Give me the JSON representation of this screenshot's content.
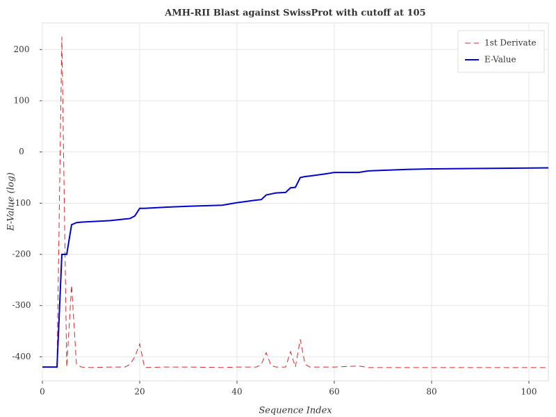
{
  "chart_data": {
    "type": "line",
    "title": "AMH-RII Blast against SwissProt with cutoff at 105",
    "x_label": "Sequence Index",
    "y_label": "E-Value (log)",
    "x": [
      0,
      3,
      4,
      5,
      6,
      7,
      8,
      10,
      14,
      17,
      18,
      19,
      20,
      21,
      25,
      30,
      37,
      40,
      44,
      45,
      46,
      47,
      48,
      50,
      51,
      52,
      53,
      54,
      55,
      58,
      60,
      65,
      67,
      75,
      80,
      104
    ],
    "series": [
      {
        "name": "1st Derivate",
        "color": "#d62728",
        "dashed": true,
        "values": [
          -420,
          -420,
          225,
          -420,
          -260,
          -415,
          -420,
          -421,
          -420,
          -420,
          -415,
          -400,
          -375,
          -421,
          -420,
          -420,
          -421,
          -420,
          -420,
          -415,
          -392,
          -417,
          -420,
          -420,
          -390,
          -420,
          -366,
          -415,
          -420,
          -420,
          -420,
          -418,
          -421,
          -421,
          -421,
          -421
        ]
      },
      {
        "name": "E-Value",
        "color": "#0000cc",
        "dashed": false,
        "values": [
          -420,
          -420,
          -200,
          -200,
          -142,
          -138,
          -137,
          -136,
          -134,
          -131,
          -130,
          -125,
          -110,
          -110,
          -108,
          -106,
          -104,
          -99,
          -94,
          -93,
          -84,
          -82,
          -80,
          -79,
          -70,
          -69,
          -50,
          -48,
          -47,
          -43,
          -40,
          -40,
          -37,
          -34,
          -33,
          -31
        ]
      }
    ],
    "xlim": [
      0,
      104
    ],
    "ylim": [
      -447,
      252
    ],
    "xticks": [
      0,
      20,
      40,
      60,
      80,
      100
    ],
    "yticks": [
      -400,
      -300,
      -200,
      -100,
      0,
      100,
      200
    ],
    "grid": true,
    "legend": "upper right"
  }
}
